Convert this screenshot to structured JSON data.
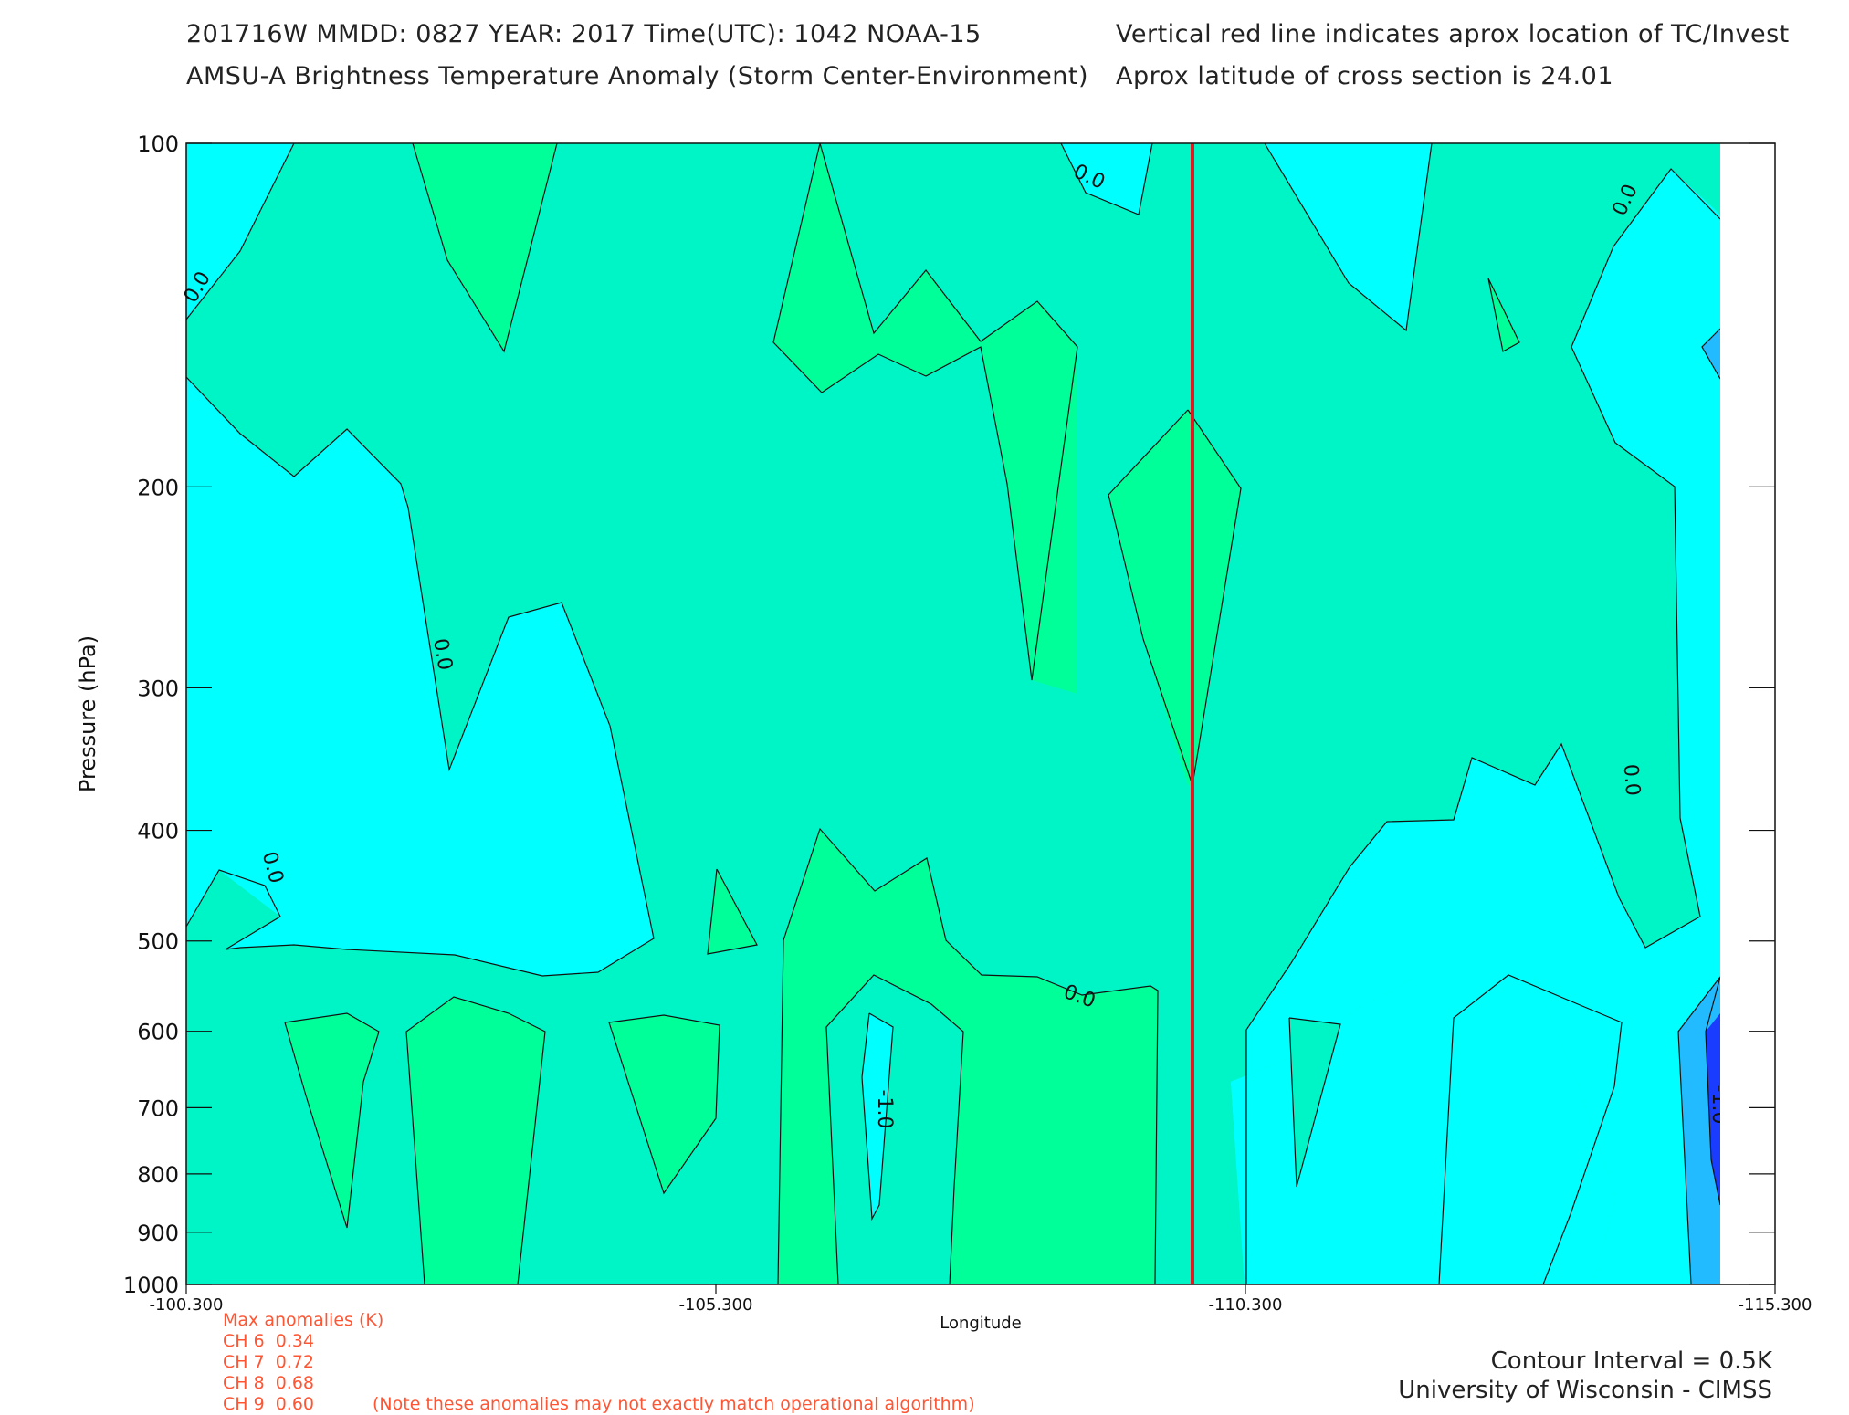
{
  "header": {
    "line1": "201716W  MMDD: 0827 YEAR: 2017 Time(UTC): 1042 NOAA-15",
    "line2": "AMSU-A Brightness Temperature Anomaly (Storm Center-Environment)",
    "right1": "Vertical red line indicates aprox location of TC/Invest",
    "right2": "Aprox latitude of cross section is 24.01"
  },
  "chart_data": {
    "type": "heatmap",
    "subtype": "filled-contour cross section",
    "xlabel": "Longitude",
    "ylabel": "Pressure (hPa)",
    "x_ticks": [
      "-100.300",
      "-105.300",
      "-110.300",
      "-115.300"
    ],
    "x_range": [
      -100.3,
      -115.3
    ],
    "y_ticks": [
      "100",
      "200",
      "300",
      "400",
      "500",
      "600",
      "700",
      "800",
      "900",
      "1000"
    ],
    "y_range": [
      100,
      1000
    ],
    "y_scale": "log",
    "tc_longitude": -109.8,
    "contour_interval": 0.5,
    "contour_labels": [
      "0.0",
      "0.0",
      "0.0",
      "0.0",
      "0.0",
      "0.0",
      "0.0",
      "-1.0",
      "-1.0"
    ],
    "level_colors": {
      "-1.5": "#1a3cff",
      "-1.0": "#22bbff",
      "-0.5": "#00ffff",
      "0.0": "#00f5c6",
      "0.5": "#00ff99"
    }
  },
  "stats": {
    "title": "Max anomalies (K)",
    "channels": [
      {
        "label": "CH 6",
        "value": "0.34"
      },
      {
        "label": "CH 7",
        "value": "0.72"
      },
      {
        "label": "CH 8",
        "value": "0.68"
      },
      {
        "label": "CH 9",
        "value": "0.60"
      }
    ],
    "note": "(Note these anomalies may not exactly match operational algorithm)"
  },
  "footer": {
    "interval": "Contour Interval = 0.5K",
    "credit": "University of Wisconsin - CIMSS"
  }
}
